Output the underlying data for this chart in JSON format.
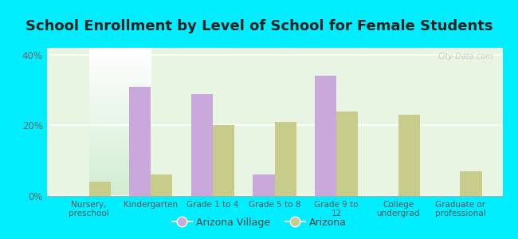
{
  "title": "School Enrollment by Level of School for Female Students",
  "categories": [
    "Nursery,\npreschool",
    "Kindergarten",
    "Grade 1 to 4",
    "Grade 5 to 8",
    "Grade 9 to\n12",
    "College\nundergrad",
    "Graduate or\nprofessional"
  ],
  "arizona_village": [
    0,
    31,
    29,
    6,
    34,
    0,
    0
  ],
  "arizona": [
    4,
    6,
    20,
    21,
    24,
    23,
    7
  ],
  "ylim": [
    0,
    42
  ],
  "yticks": [
    0,
    20,
    40
  ],
  "ytick_labels": [
    "0%",
    "20%",
    "40%"
  ],
  "color_village": "#c9a8dc",
  "color_arizona": "#c8cc8a",
  "bg_color_outer": "#00eeff",
  "legend_labels": [
    "Arizona Village",
    "Arizona"
  ],
  "title_fontsize": 13,
  "bar_width": 0.35
}
